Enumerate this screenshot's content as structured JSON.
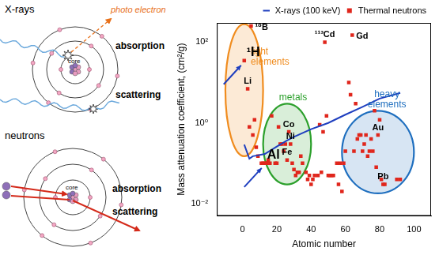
{
  "diagram": {
    "xrays": {
      "title": "X-rays",
      "photo_electron": "photo electron",
      "core": "core",
      "absorption": "absorption",
      "scattering": "scattering"
    },
    "neutrons": {
      "title": "neutrons",
      "core": "core",
      "absorption": "absorption",
      "scattering": "scattering"
    }
  },
  "chart_data": {
    "type": "scatter",
    "x_label": "Atomic number",
    "y_label": "Mass attenuation coefficient, (cm²/g)",
    "log": "y",
    "grid": false,
    "legend": "top",
    "xlim": [
      -15,
      110
    ],
    "xticks": [
      0,
      20,
      40,
      60,
      80,
      100
    ],
    "ylim": [
      0.005,
      300
    ],
    "yticks": [
      {
        "value": 0.01,
        "label": "10⁻²"
      },
      {
        "value": 1,
        "label": "10⁰"
      },
      {
        "value": 100,
        "label": "10²"
      }
    ],
    "series": [
      {
        "name": "X-rays (100 keV)",
        "type": "line",
        "line_style": "solid",
        "color": "#1f3fbf",
        "x": [
          1,
          4,
          6,
          8,
          13,
          20,
          26,
          30,
          40,
          50,
          60,
          70,
          80,
          92
        ],
        "values": [
          0.29,
          0.13,
          0.15,
          0.155,
          0.17,
          0.26,
          0.37,
          0.45,
          0.7,
          1.0,
          1.6,
          2.5,
          4.0,
          5.5
        ]
      },
      {
        "name": "Thermal neutrons",
        "type": "scatter",
        "marker": "square",
        "color": "#e0261c",
        "x": [
          1,
          3,
          4,
          5,
          6,
          7,
          8,
          9,
          11,
          12,
          13,
          14,
          15,
          16,
          17,
          19,
          20,
          21,
          22,
          23,
          24,
          25,
          26,
          27,
          28,
          29,
          30,
          31,
          32,
          33,
          34,
          35,
          37,
          38,
          39,
          40,
          41,
          42,
          44,
          45,
          46,
          47,
          48,
          49,
          50,
          51,
          52,
          53,
          55,
          56,
          57,
          58,
          59,
          60,
          62,
          63,
          64,
          65,
          66,
          67,
          68,
          69,
          70,
          71,
          72,
          73,
          74,
          75,
          76,
          77,
          78,
          79,
          80,
          81,
          82,
          83,
          90,
          92
        ],
        "values": [
          35,
          7,
          0.8,
          250,
          0.5,
          1.2,
          0.25,
          0.15,
          0.1,
          0.1,
          0.1,
          0.1,
          0.12,
          0.1,
          1.5,
          0.1,
          0.1,
          0.8,
          0.3,
          0.3,
          0.2,
          0.3,
          0.12,
          0.6,
          0.3,
          0.1,
          0.07,
          0.05,
          0.06,
          0.06,
          0.15,
          0.1,
          0.06,
          0.04,
          0.05,
          0.03,
          0.04,
          0.05,
          0.05,
          0.9,
          0.06,
          0.6,
          100,
          1.5,
          0.05,
          0.05,
          0.05,
          0.05,
          0.1,
          0.03,
          0.1,
          0.02,
          0.1,
          0.2,
          10,
          5,
          150,
          0.2,
          3,
          0.4,
          0.5,
          0.5,
          0.2,
          0.3,
          0.5,
          0.15,
          0.2,
          0.4,
          0.2,
          2,
          0.08,
          0.5,
          1.2,
          0.04,
          0.03,
          0.03,
          0.04,
          0.04
        ]
      }
    ],
    "regions": [
      {
        "label": "light elements",
        "color": "#f08c1e",
        "x": [
          -10,
          12
        ],
        "y": [
          0.15,
          280
        ]
      },
      {
        "label": "metals",
        "color": "#2ca02c",
        "x": [
          12,
          40
        ],
        "y": [
          0.03,
          3
        ]
      },
      {
        "label": "heavy elements",
        "color": "#1f6fbf",
        "x": [
          58,
          100
        ],
        "y": [
          0.018,
          2
        ]
      }
    ],
    "annotations": [
      {
        "text": "¹⁰B",
        "x": 5,
        "y": 250
      },
      {
        "text": "¹H",
        "x": 1,
        "y": 35,
        "marker": "arrow"
      },
      {
        "text": "Li",
        "x": 3,
        "y": 7
      },
      {
        "text": "Co",
        "x": 27,
        "y": 0.6
      },
      {
        "text": "Ni",
        "x": 28,
        "y": 0.3
      },
      {
        "text": "Fe",
        "x": 26,
        "y": 0.12
      },
      {
        "text": "¹¹³Cd",
        "x": 48,
        "y": 100
      },
      {
        "text": "Gd",
        "x": 64,
        "y": 150
      },
      {
        "text": "Au",
        "x": 79,
        "y": 0.5
      },
      {
        "text": "Pb",
        "x": 82,
        "y": 0.03
      },
      {
        "text": "Al",
        "x": 13,
        "y": 0.1,
        "marker": "arrow"
      }
    ]
  }
}
